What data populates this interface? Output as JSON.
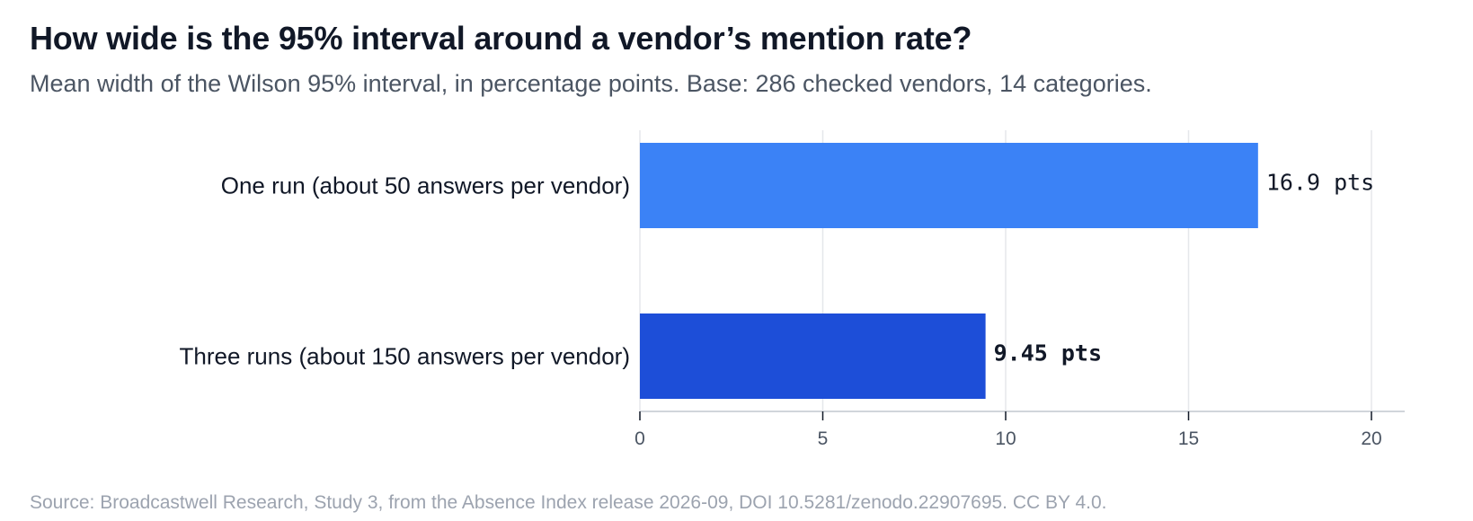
{
  "title": "How wide is the 95% interval around a vendor’s mention rate?",
  "subtitle": "Mean width of the Wilson 95% interval, in percentage points. Base: 286 checked vendors, 14 categories.",
  "source": "Source: Broadcastwell Research, Study 3, from the Absence Index release 2026-09, DOI 10.5281/zenodo.22907695. CC BY 4.0.",
  "colors": {
    "one_run_bar": "#3b82f6",
    "three_runs_bar": "#1d4ed8",
    "grid": "#e5e7eb",
    "axis": "#d1d5db"
  },
  "chart_data": {
    "type": "bar",
    "orientation": "horizontal",
    "categories": [
      "One run (about 50 answers per vendor)",
      "Three runs (about 150 answers per vendor)"
    ],
    "values": [
      16.9,
      9.45
    ],
    "value_labels": [
      "16.9 pts",
      "9.45 pts"
    ],
    "xlim": [
      0,
      21
    ],
    "xticks": [
      0,
      5,
      10,
      15,
      20
    ],
    "xlabel": "",
    "ylabel": "",
    "grid": true,
    "legend": "none"
  }
}
